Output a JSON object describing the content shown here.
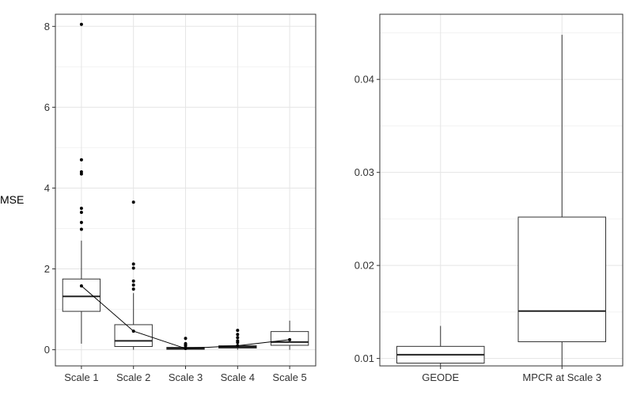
{
  "chart_data": {
    "ylabel": "MSE",
    "panels": [
      {
        "type": "box",
        "categories": [
          "Scale 1",
          "Scale 2",
          "Scale 3",
          "Scale 4",
          "Scale 5"
        ],
        "ylim": [
          -0.4,
          8.3
        ],
        "yticks": [
          0,
          2,
          4,
          6,
          8
        ],
        "grid": true,
        "boxes": [
          {
            "q1": 0.95,
            "median": 1.32,
            "q3": 1.75,
            "whisker_low": 0.15,
            "whisker_high": 2.7,
            "outliers": [
              8.05,
              4.7,
              4.4,
              4.35,
              3.5,
              3.4,
              3.15,
              2.98
            ]
          },
          {
            "q1": 0.08,
            "median": 0.22,
            "q3": 0.62,
            "whisker_low": 0.0,
            "whisker_high": 1.4,
            "outliers": [
              3.65,
              2.12,
              2.02,
              1.7,
              1.6,
              1.5
            ]
          },
          {
            "q1": 0.01,
            "median": 0.03,
            "q3": 0.06,
            "whisker_low": 0.0,
            "whisker_high": 0.1,
            "outliers": [
              0.28,
              0.15,
              0.12,
              0.1
            ]
          },
          {
            "q1": 0.04,
            "median": 0.07,
            "q3": 0.1,
            "whisker_low": 0.0,
            "whisker_high": 0.16,
            "outliers": [
              0.48,
              0.38,
              0.3,
              0.22,
              0.18
            ]
          },
          {
            "q1": 0.11,
            "median": 0.19,
            "q3": 0.45,
            "whisker_low": 0.0,
            "whisker_high": 0.72,
            "outliers": []
          }
        ],
        "mean_line": [
          1.58,
          0.46,
          0.03,
          0.1,
          0.25
        ]
      },
      {
        "type": "box",
        "categories": [
          "GEODE",
          "MPCR at Scale 3"
        ],
        "ylim": [
          0.0092,
          0.047
        ],
        "yticks": [
          0.01,
          0.02,
          0.03,
          0.04
        ],
        "grid": true,
        "boxes": [
          {
            "q1": 0.0095,
            "median": 0.0104,
            "q3": 0.0113,
            "whisker_low": 0.0092,
            "whisker_high": 0.0135,
            "outliers": []
          },
          {
            "q1": 0.0118,
            "median": 0.0151,
            "q3": 0.0252,
            "whisker_low": 0.0092,
            "whisker_high": 0.0448,
            "outliers": []
          }
        ]
      }
    ]
  }
}
